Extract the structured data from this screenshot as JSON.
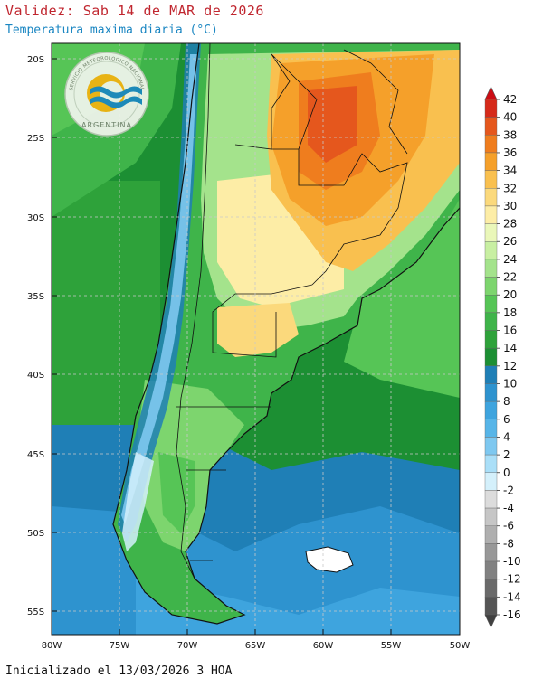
{
  "header": {
    "validity": "Validez: Sab 14 de MAR de 2026",
    "variable": "Temperatura maxima diaria (°C)"
  },
  "footer": {
    "init": "Inicializado el 13/03/2026 3 HOA"
  },
  "logo": {
    "arc_text": "SERVICIO METEOROLOGICO NACIONAL",
    "country": "ARGENTINA"
  },
  "axes": {
    "lat_ticks": [
      "20S",
      "25S",
      "30S",
      "35S",
      "40S",
      "45S",
      "50S",
      "55S"
    ],
    "lon_ticks": [
      "80W",
      "75W",
      "70W",
      "65W",
      "60W",
      "55W",
      "50W"
    ]
  },
  "colorbar": {
    "labels": [
      "42",
      "40",
      "38",
      "36",
      "34",
      "32",
      "30",
      "28",
      "26",
      "24",
      "22",
      "20",
      "18",
      "16",
      "14",
      "12",
      "10",
      "8",
      "6",
      "4",
      "2",
      "0",
      "-2",
      "-4",
      "-6",
      "-8",
      "-10",
      "-12",
      "-14",
      "-16"
    ],
    "colors": [
      "#cc0c14",
      "#d62a1a",
      "#e5571d",
      "#ef7d1e",
      "#f5a02a",
      "#f9c04f",
      "#fbd97c",
      "#fdeda6",
      "#eaf7b9",
      "#c8efa2",
      "#a4e38c",
      "#7dd56e",
      "#56c556",
      "#3fb44a",
      "#2ea23a",
      "#1c8f33",
      "#1f7fb6",
      "#2e93cf",
      "#3ea4de",
      "#57b5e8",
      "#7ec8f0",
      "#aadff8",
      "#d4f0fb",
      "#dcdcdc",
      "#c6c6c6",
      "#afafaf",
      "#989898",
      "#818181",
      "#6a6a6a",
      "#555555",
      "#404040"
    ]
  }
}
